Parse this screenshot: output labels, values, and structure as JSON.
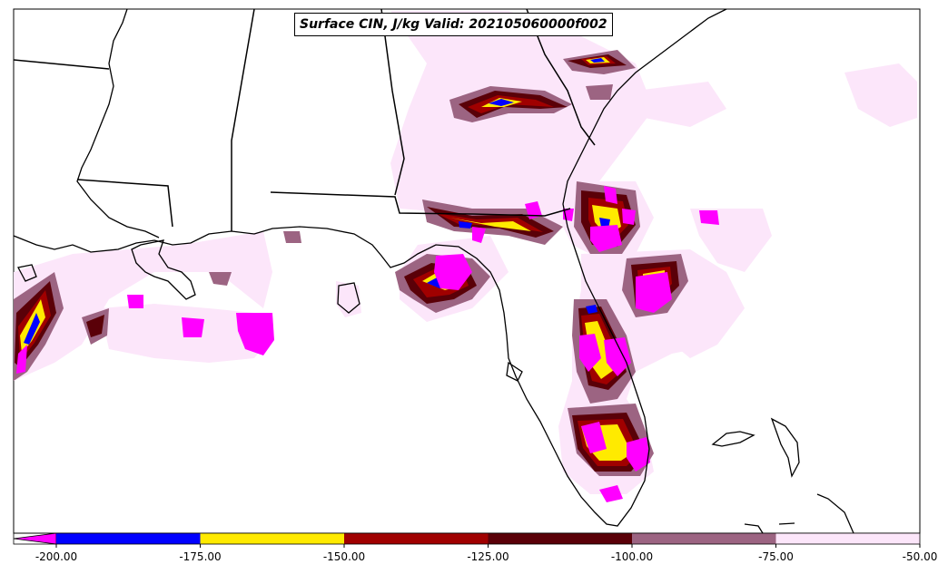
{
  "title": "Surface CIN, J/kg Valid: 202105060000f002",
  "colorbar": {
    "extend": "min",
    "ticks": [
      "-200.00",
      "-175.00",
      "-150.00",
      "-125.00",
      "-100.00",
      "-75.00",
      "-50.00"
    ],
    "bins": [
      {
        "range": [
          -200,
          -175
        ],
        "color": "#0000ff"
      },
      {
        "range": [
          -175,
          -150
        ],
        "color": "#ffea00"
      },
      {
        "range": [
          -150,
          -125
        ],
        "color": "#a00000"
      },
      {
        "range": [
          -125,
          -100
        ],
        "color": "#5a0008"
      },
      {
        "range": [
          -100,
          -75
        ],
        "color": "#9c6482"
      },
      {
        "range": [
          -75,
          -50
        ],
        "color": "#fce6fa"
      }
    ],
    "under_color": "#ff00ff"
  }
}
